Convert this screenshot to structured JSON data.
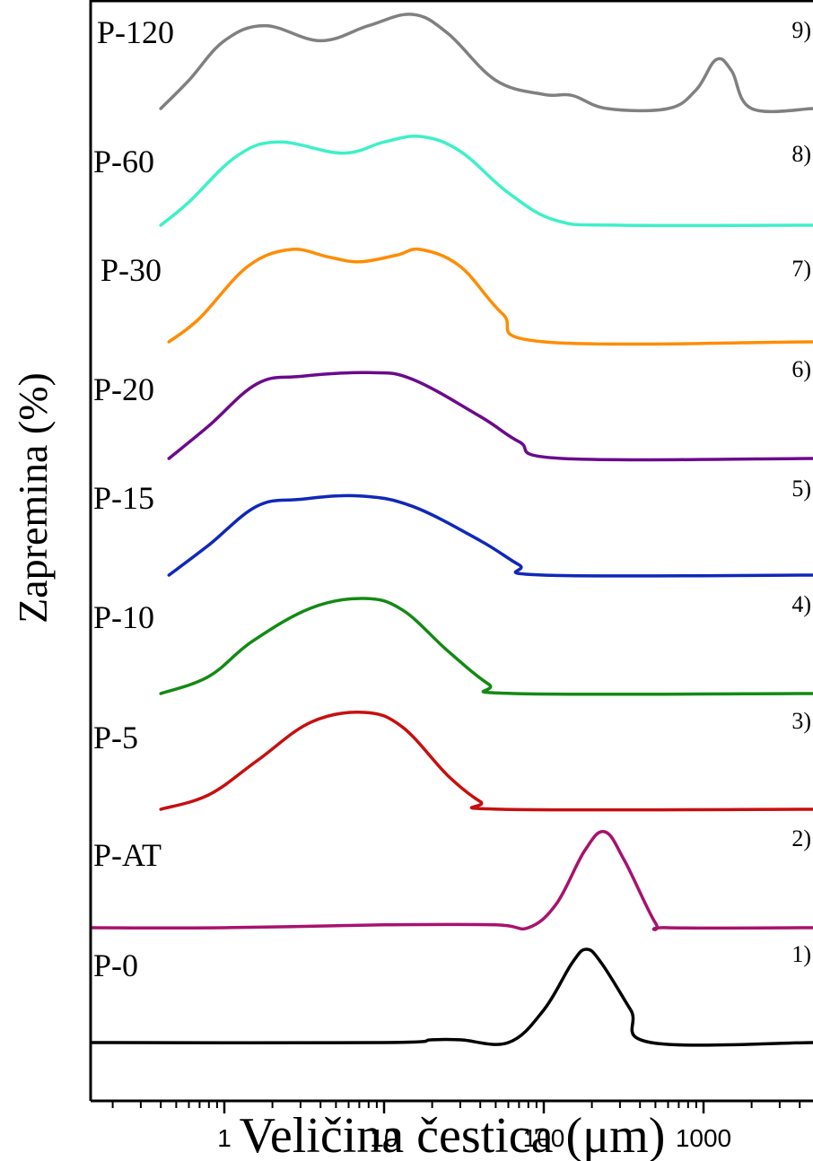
{
  "chart_data": {
    "type": "line",
    "xlabel": "Veličina čestica (μm)",
    "ylabel": "Zapremina (%)",
    "x_scale": "log",
    "xlim": [
      0.15,
      5000
    ],
    "x_ticks": [
      1,
      10,
      100,
      1000
    ],
    "x_tick_labels": [
      "1",
      "10",
      "100",
      "1000"
    ],
    "grid": false,
    "legend": "none",
    "series": [
      {
        "name": "P-120",
        "number": "9)",
        "color": "#808080",
        "points": [
          [
            0.4,
            0
          ],
          [
            0.6,
            0.3
          ],
          [
            1.0,
            0.72
          ],
          [
            1.8,
            0.88
          ],
          [
            4.0,
            0.72
          ],
          [
            8.0,
            0.88
          ],
          [
            15,
            1.0
          ],
          [
            25,
            0.8
          ],
          [
            50,
            0.3
          ],
          [
            100,
            0.15
          ],
          [
            150,
            0.14
          ],
          [
            250,
            0.0
          ],
          [
            600,
            0.0
          ],
          [
            900,
            0.2
          ],
          [
            1200,
            0.52
          ],
          [
            1500,
            0.4
          ],
          [
            2000,
            0.0
          ],
          [
            5000,
            0.0
          ]
        ]
      },
      {
        "name": "P-60",
        "number": "8)",
        "color": "#3ef0c8",
        "points": [
          [
            0.4,
            0
          ],
          [
            0.6,
            0.25
          ],
          [
            1.2,
            0.75
          ],
          [
            2.2,
            0.9
          ],
          [
            5.5,
            0.78
          ],
          [
            10,
            0.9
          ],
          [
            17,
            0.96
          ],
          [
            30,
            0.8
          ],
          [
            60,
            0.35
          ],
          [
            120,
            0.05
          ],
          [
            300,
            0.0
          ],
          [
            5000,
            0.0
          ]
        ]
      },
      {
        "name": "P-30",
        "number": "7)",
        "color": "#ff8c00",
        "points": [
          [
            0.45,
            0
          ],
          [
            0.7,
            0.25
          ],
          [
            1.4,
            0.8
          ],
          [
            2.6,
            0.98
          ],
          [
            4.5,
            0.9
          ],
          [
            7,
            0.85
          ],
          [
            12,
            0.92
          ],
          [
            17,
            0.98
          ],
          [
            30,
            0.8
          ],
          [
            55,
            0.3
          ],
          [
            100,
            0.0
          ],
          [
            5000,
            0.0
          ]
        ]
      },
      {
        "name": "P-20",
        "number": "6)",
        "color": "#6b0a8c",
        "points": [
          [
            0.45,
            0
          ],
          [
            0.8,
            0.35
          ],
          [
            1.6,
            0.8
          ],
          [
            3,
            0.88
          ],
          [
            8,
            0.92
          ],
          [
            15,
            0.85
          ],
          [
            40,
            0.45
          ],
          [
            70,
            0.18
          ],
          [
            130,
            0.0
          ],
          [
            5000,
            0.0
          ]
        ]
      },
      {
        "name": "P-15",
        "number": "5)",
        "color": "#1028b8",
        "points": [
          [
            0.45,
            0
          ],
          [
            0.8,
            0.35
          ],
          [
            1.6,
            0.8
          ],
          [
            3,
            0.88
          ],
          [
            7,
            0.92
          ],
          [
            15,
            0.8
          ],
          [
            40,
            0.4
          ],
          [
            70,
            0.12
          ],
          [
            100,
            0.0
          ],
          [
            5000,
            0.0
          ]
        ]
      },
      {
        "name": "P-10",
        "number": "4)",
        "color": "#138a13",
        "points": [
          [
            0.4,
            0
          ],
          [
            0.8,
            0.18
          ],
          [
            1.5,
            0.55
          ],
          [
            3.5,
            0.9
          ],
          [
            7.5,
            1.0
          ],
          [
            13,
            0.88
          ],
          [
            25,
            0.45
          ],
          [
            45,
            0.1
          ],
          [
            65,
            0.0
          ],
          [
            5000,
            0.0
          ]
        ]
      },
      {
        "name": "P-5",
        "number": "3)",
        "color": "#c80e0e",
        "points": [
          [
            0.4,
            0
          ],
          [
            0.8,
            0.15
          ],
          [
            1.6,
            0.5
          ],
          [
            3.5,
            0.9
          ],
          [
            7.5,
            1.0
          ],
          [
            13,
            0.85
          ],
          [
            25,
            0.35
          ],
          [
            40,
            0.08
          ],
          [
            55,
            0.0
          ],
          [
            5000,
            0.0
          ]
        ]
      },
      {
        "name": "P-AT",
        "number": "2)",
        "color": "#a8126e",
        "points": [
          [
            0.15,
            0
          ],
          [
            1,
            0.0
          ],
          [
            10,
            0.03
          ],
          [
            50,
            0.03
          ],
          [
            80,
            0.0
          ],
          [
            120,
            0.25
          ],
          [
            180,
            0.8
          ],
          [
            240,
            1.0
          ],
          [
            320,
            0.7
          ],
          [
            500,
            0.05
          ],
          [
            600,
            0.0
          ],
          [
            5000,
            0.0
          ]
        ]
      },
      {
        "name": "P-0",
        "number": "1)",
        "color": "#000000",
        "points": [
          [
            0.15,
            0
          ],
          [
            10,
            0.0
          ],
          [
            20,
            0.03
          ],
          [
            30,
            0.03
          ],
          [
            60,
            0.0
          ],
          [
            100,
            0.35
          ],
          [
            150,
            0.85
          ],
          [
            185,
            1.0
          ],
          [
            230,
            0.85
          ],
          [
            350,
            0.35
          ],
          [
            470,
            0.0
          ],
          [
            5000,
            0.0
          ]
        ]
      }
    ]
  }
}
